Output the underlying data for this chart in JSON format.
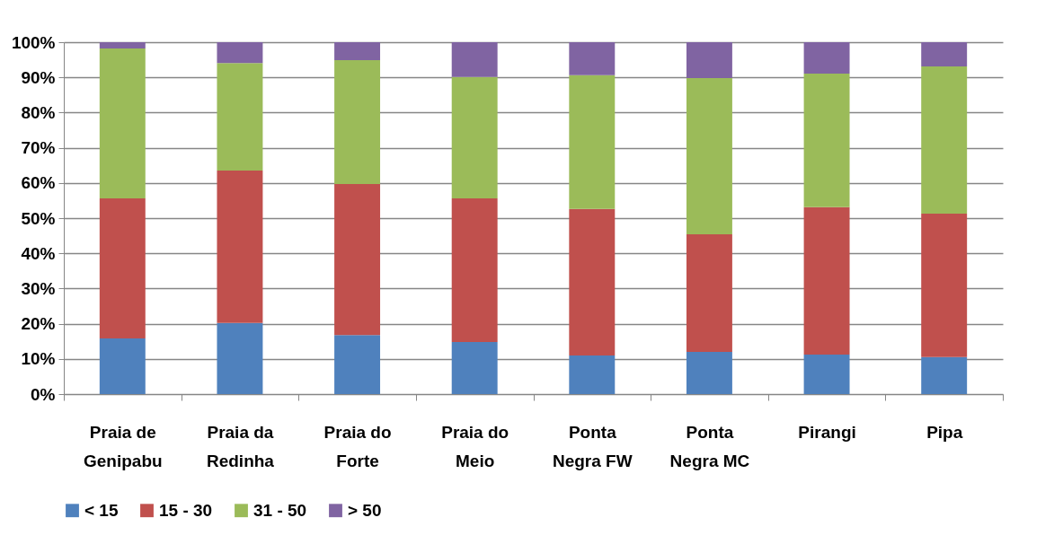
{
  "chart_data": {
    "type": "bar",
    "stacked": true,
    "categories": [
      "Praia de Genipabu",
      "Praia da Redinha",
      "Praia do Forte",
      "Praia do Meio",
      "Ponta Negra FW",
      "Ponta Negra MC",
      "Pirangi",
      "Pipa"
    ],
    "series": [
      {
        "name": "< 15",
        "color": "#4f81bd",
        "values": [
          15.8,
          20.2,
          16.8,
          14.8,
          11,
          12,
          11.2,
          10.5
        ]
      },
      {
        "name": "15 - 30",
        "color": "#c0504d",
        "values": [
          39.8,
          43.3,
          42.9,
          40.8,
          41.6,
          33.4,
          41.9,
          40.8
        ]
      },
      {
        "name": "31 - 50",
        "color": "#9bbb59",
        "values": [
          42.6,
          30.6,
          35.2,
          34.5,
          38,
          44.4,
          38,
          41.8
        ]
      },
      {
        "name": "> 50",
        "color": "#8064a2",
        "values": [
          1.8,
          5.9,
          5.1,
          9.9,
          9.4,
          10.2,
          8.9,
          6.9
        ]
      }
    ],
    "ylim": [
      0,
      100
    ],
    "yticks": [
      {
        "value": 0,
        "label": "0%"
      },
      {
        "value": 10,
        "label": "10%"
      },
      {
        "value": 20,
        "label": "20%"
      },
      {
        "value": 30,
        "label": "30%"
      },
      {
        "value": 40,
        "label": "40%"
      },
      {
        "value": 50,
        "label": "50%"
      },
      {
        "value": 60,
        "label": "60%"
      },
      {
        "value": 70,
        "label": "70%"
      },
      {
        "value": 80,
        "label": "80%"
      },
      {
        "value": 90,
        "label": "90%"
      },
      {
        "value": 100,
        "label": "100%"
      }
    ],
    "grid": "y",
    "legend": "bottom"
  }
}
